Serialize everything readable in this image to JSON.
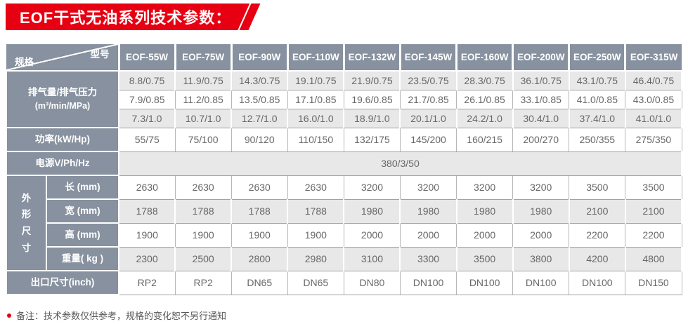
{
  "title": "EOF干式无油系列技术参数：",
  "colors": {
    "accent_red": "#e60012",
    "header_gray_blue": "#87919f",
    "stripe_gray": "#e8e8e8",
    "value_text": "#676767"
  },
  "table": {
    "corner": {
      "model_label": "型号",
      "spec_label": "规格"
    },
    "models": [
      "EOF-55W",
      "EOF-75W",
      "EOF-90W",
      "EOF-110W",
      "EOF-132W",
      "EOF-145W",
      "EOF-160W",
      "EOF-200W",
      "EOF-250W",
      "EOF-315W"
    ],
    "sections": [
      {
        "type": "multirow",
        "label_line1": "排气量/排气压力",
        "label_line2": "(m³/min/MPa)",
        "rows": [
          [
            "8.8/0.75",
            "11.9/0.75",
            "14.3/0.75",
            "19.1/0.75",
            "21.9/0.75",
            "23.5/0.75",
            "28.3/0.75",
            "36.1/0.75",
            "43.1/0.75",
            "46.4/0.75"
          ],
          [
            "7.9/0.85",
            "11.2/0.85",
            "13.5/0.85",
            "17.1/0.85",
            "19.6/0.85",
            "21.7/0.85",
            "26.1/0.85",
            "33.1/0.85",
            "41.0/0.85",
            "43.0/0.85"
          ],
          [
            "7.3/1.0",
            "10.7/1.0",
            "12.7/1.0",
            "16.0/1.0",
            "18.9/1.0",
            "20.1/1.0",
            "24.2/1.0",
            "30.4/1.0",
            "37.4/1.0",
            "41.0/1.0"
          ]
        ]
      },
      {
        "type": "row",
        "label": "功率(kW/Hp)",
        "values": [
          "55/75",
          "75/100",
          "90/120",
          "110/150",
          "132/175",
          "145/200",
          "160/215",
          "200/270",
          "250/355",
          "275/350"
        ]
      },
      {
        "type": "merged",
        "label": "电源V/Ph/Hz",
        "value": "380/3/50"
      },
      {
        "type": "group",
        "group_label": "外形尺寸",
        "rows": [
          {
            "label": "长 (mm)",
            "values": [
              "2630",
              "2630",
              "2630",
              "2630",
              "3200",
              "3200",
              "3200",
              "3200",
              "3500",
              "3500"
            ]
          },
          {
            "label": "宽 (mm)",
            "values": [
              "1788",
              "1788",
              "1788",
              "1788",
              "1980",
              "1980",
              "1980",
              "1980",
              "2100",
              "2100"
            ]
          },
          {
            "label": "高 (mm)",
            "values": [
              "1900",
              "1900",
              "1900",
              "1900",
              "2000",
              "2000",
              "2000",
              "2000",
              "2200",
              "2200"
            ]
          },
          {
            "label": "重量( kg )",
            "values": [
              "2300",
              "2500",
              "2800",
              "2980",
              "3100",
              "3300",
              "3500",
              "3800",
              "4200",
              "4800"
            ]
          }
        ]
      },
      {
        "type": "row",
        "label": "出口尺寸(inch)",
        "values": [
          "RP2",
          "RP2",
          "DN65",
          "DN65",
          "DN80",
          "DN100",
          "DN100",
          "DN100",
          "DN100",
          "DN150"
        ]
      }
    ]
  },
  "footnote": {
    "bullet_icon": "red-dot",
    "text": "备注：技术参数仅供参考，规格的变化恕不另行通知"
  }
}
